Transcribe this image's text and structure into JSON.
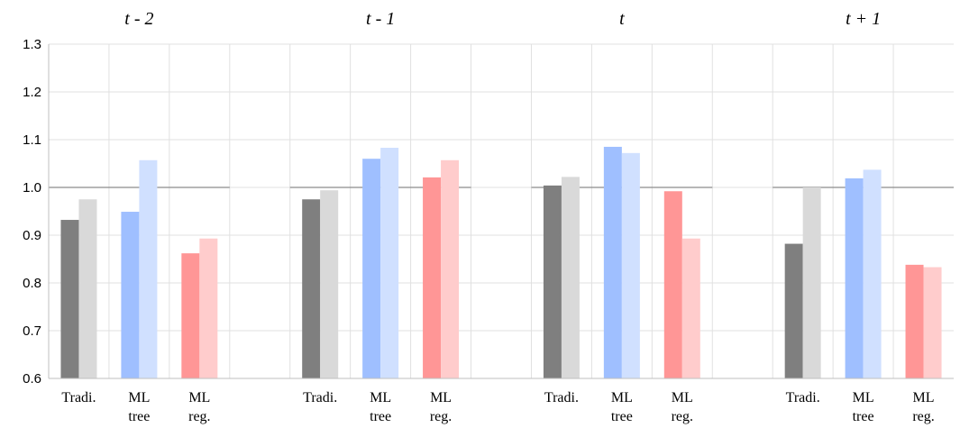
{
  "chart_data": {
    "type": "bar",
    "panels": [
      {
        "title": "t - 2",
        "groups": [
          {
            "label": [
              "Tradi."
            ],
            "values": [
              0.932,
              0.975
            ]
          },
          {
            "label": [
              "ML",
              "tree"
            ],
            "values": [
              0.949,
              1.057
            ]
          },
          {
            "label": [
              "ML",
              "reg."
            ],
            "values": [
              0.862,
              0.893
            ]
          }
        ]
      },
      {
        "title": "t - 1",
        "groups": [
          {
            "label": [
              "Tradi."
            ],
            "values": [
              0.975,
              0.994
            ]
          },
          {
            "label": [
              "ML",
              "tree"
            ],
            "values": [
              1.06,
              1.083
            ]
          },
          {
            "label": [
              "ML",
              "reg."
            ],
            "values": [
              1.021,
              1.057
            ]
          }
        ]
      },
      {
        "title": "t",
        "groups": [
          {
            "label": [
              "Tradi."
            ],
            "values": [
              1.004,
              1.022
            ]
          },
          {
            "label": [
              "ML",
              "tree"
            ],
            "values": [
              1.085,
              1.072
            ]
          },
          {
            "label": [
              "ML",
              "reg."
            ],
            "values": [
              0.992,
              0.893
            ]
          }
        ]
      },
      {
        "title": "t + 1",
        "groups": [
          {
            "label": [
              "Tradi."
            ],
            "values": [
              0.882,
              1.0
            ]
          },
          {
            "label": [
              "ML",
              "tree"
            ],
            "values": [
              1.019,
              1.037
            ]
          },
          {
            "label": [
              "ML",
              "reg."
            ],
            "values": [
              0.838,
              0.833
            ]
          }
        ]
      }
    ],
    "group_colors": [
      [
        "#7f7f7f",
        "#d9d9d9"
      ],
      [
        "#9fbfff",
        "#d0e0ff"
      ],
      [
        "#ff9696",
        "#ffcccc"
      ]
    ],
    "reference_line": 1.0,
    "ylim": [
      0.6,
      1.3
    ],
    "yticks": [
      "0.6",
      "0.7",
      "0.8",
      "0.9",
      "1.0",
      "1.1",
      "1.2",
      "1.3"
    ],
    "grid": true
  }
}
